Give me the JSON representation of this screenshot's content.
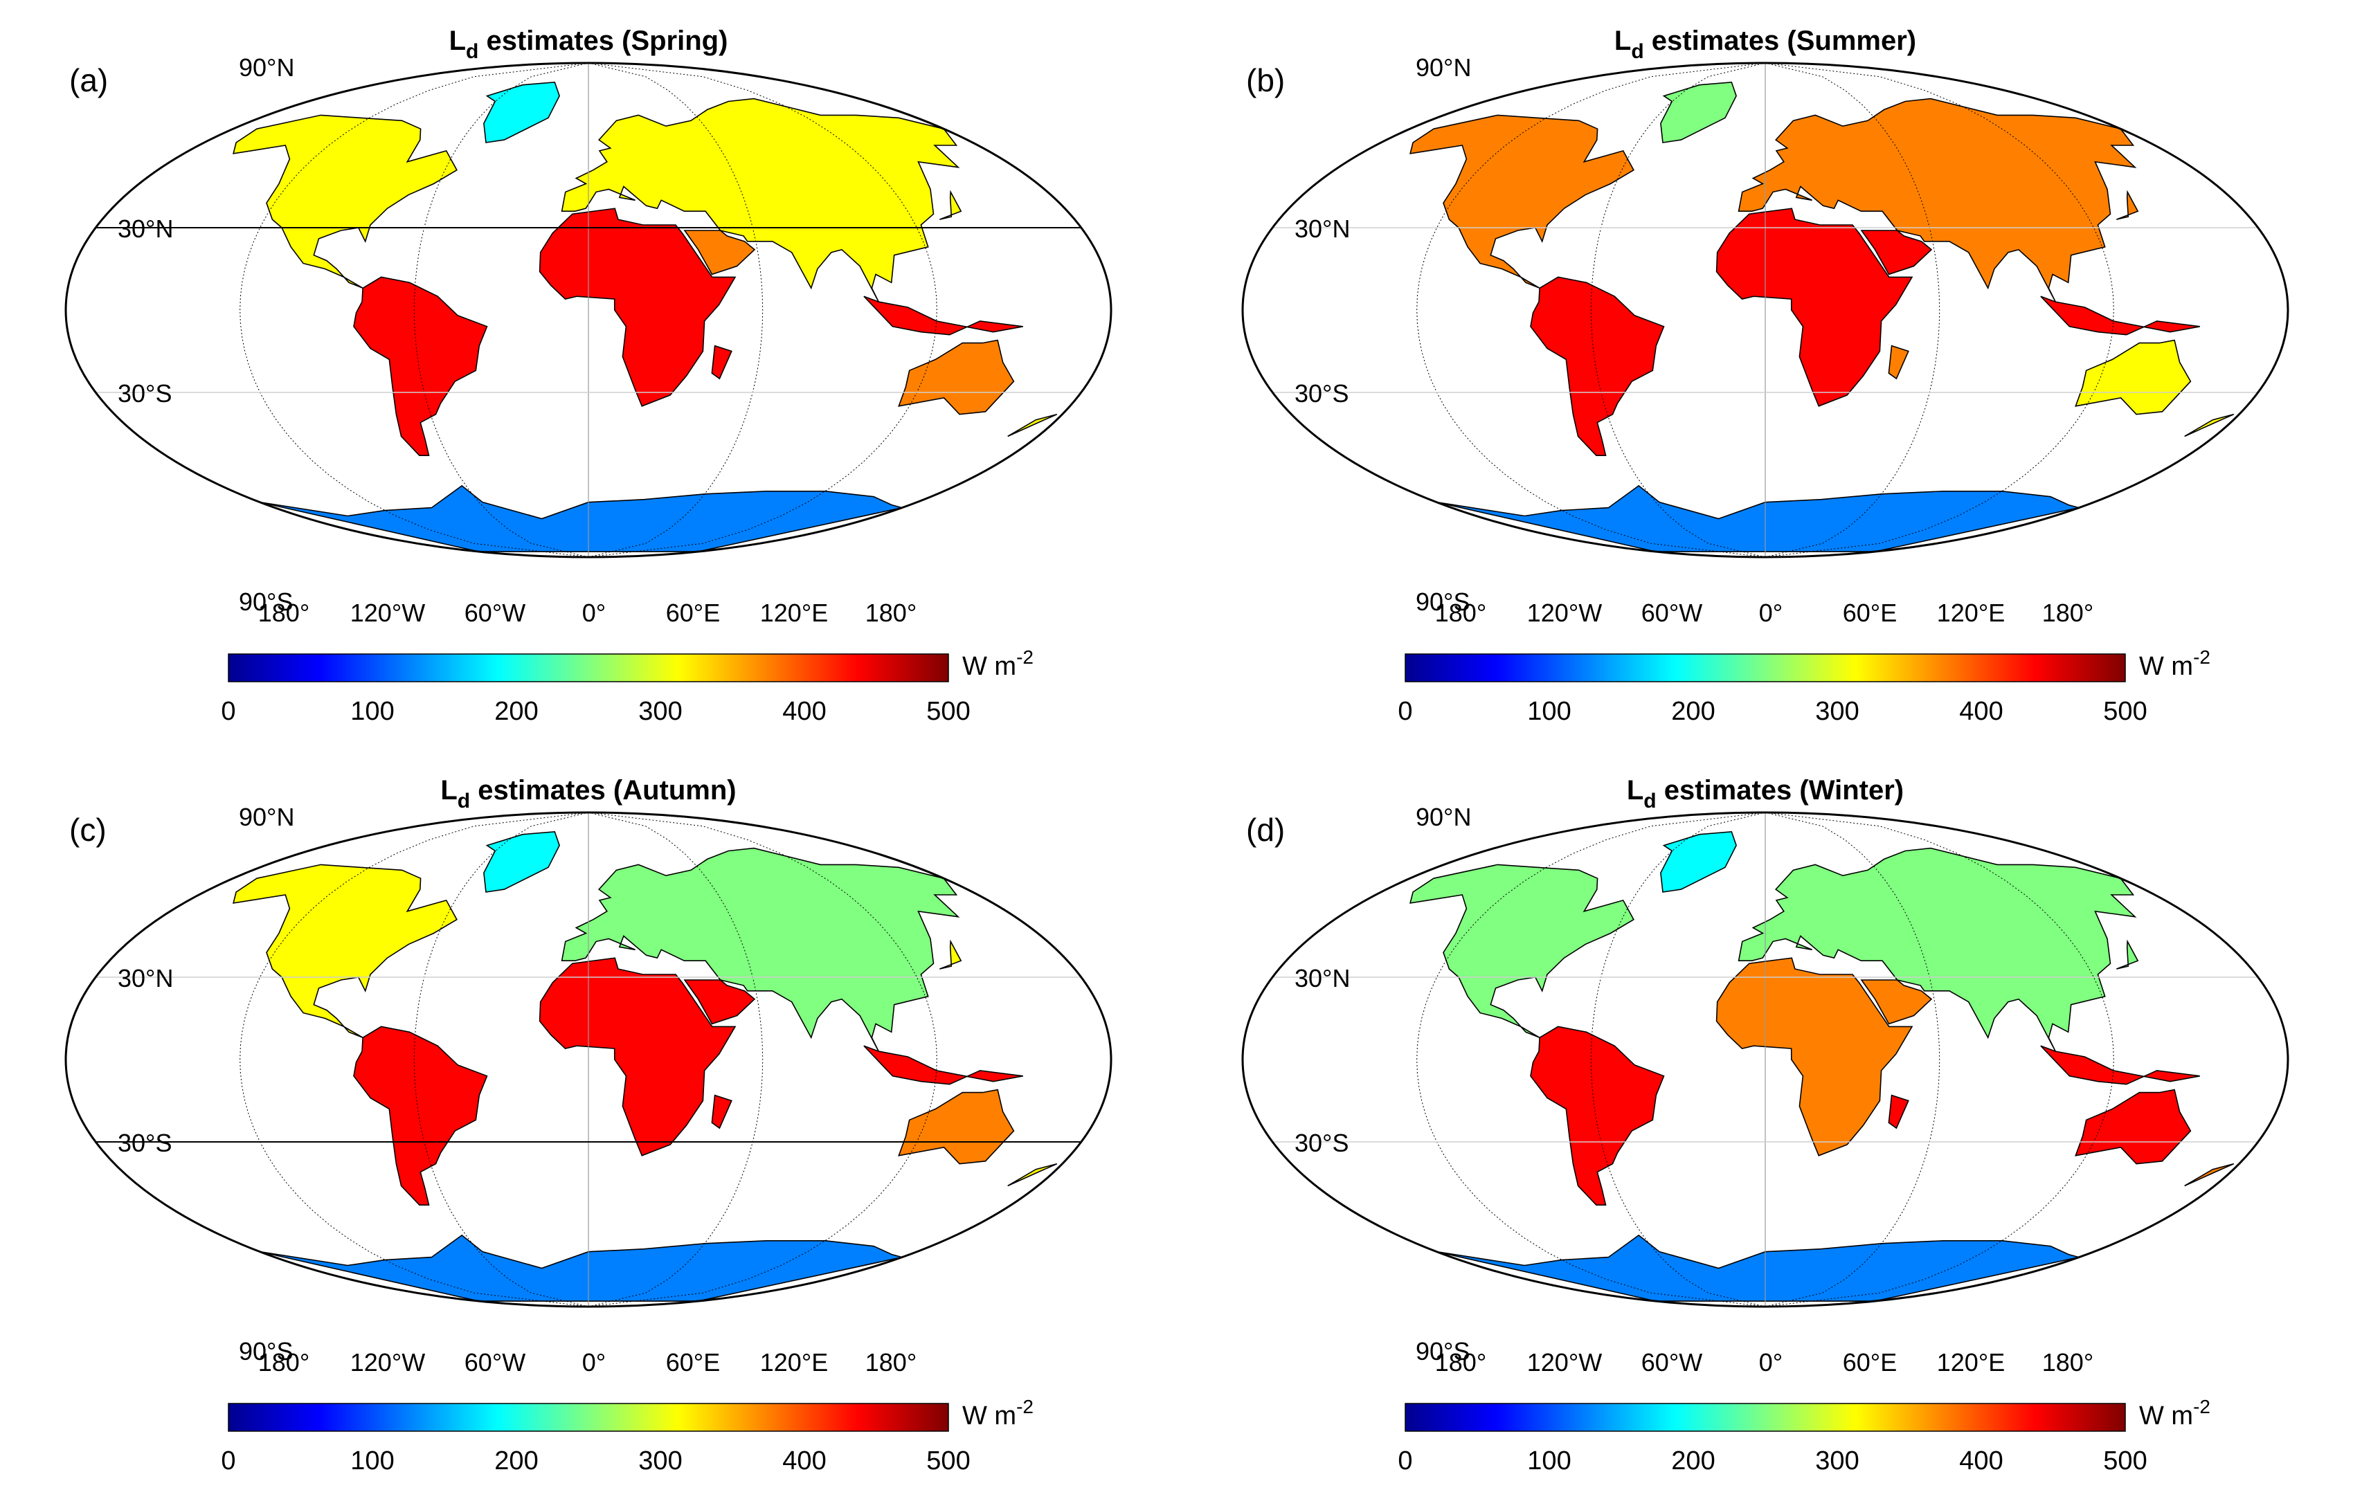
{
  "figure": {
    "colorbar": {
      "unit_main": "W m",
      "unit_exp": "-2",
      "ticks": [
        "0",
        "100",
        "200",
        "300",
        "400",
        "500"
      ],
      "range": [
        0,
        500
      ]
    },
    "axes": {
      "lat_labels": [
        "90°N",
        "30°N",
        "30°S",
        "90°S"
      ],
      "lon_labels": [
        "180°",
        "120°W",
        "60°W",
        "0°",
        "60°E",
        "120°E",
        "180°"
      ]
    },
    "panels": [
      {
        "id": "a",
        "label": "(a)",
        "title_main": "L",
        "title_sub": "d",
        "title_rest": " estimates (Spring)",
        "season": "Spring"
      },
      {
        "id": "b",
        "label": "(b)",
        "title_main": "L",
        "title_sub": "d",
        "title_rest": " estimates (Summer)",
        "season": "Summer"
      },
      {
        "id": "c",
        "label": "(c)",
        "title_main": "L",
        "title_sub": "d",
        "title_rest": " estimates (Autumn)",
        "season": "Autumn"
      },
      {
        "id": "d",
        "label": "(d)",
        "title_main": "L",
        "title_sub": "d",
        "title_rest": " estimates (Winter)",
        "season": "Winter"
      }
    ],
    "colors": {
      "cmap": [
        "#00008f",
        "#0000ff",
        "#0080ff",
        "#00ffff",
        "#80ff80",
        "#ffff00",
        "#ff8000",
        "#ff0000",
        "#800000"
      ],
      "ocean": "#ffffff",
      "frame": "#000000"
    }
  }
}
